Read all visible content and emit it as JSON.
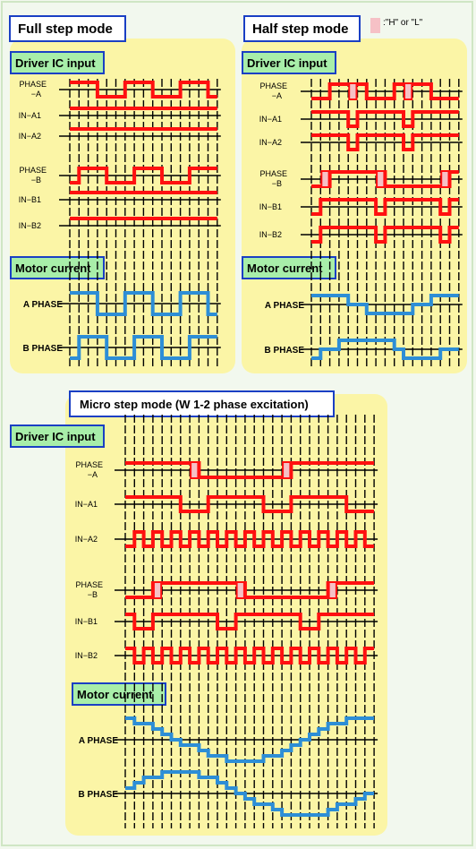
{
  "colors": {
    "panel": "#fbf5a6",
    "title_border": "#1a3fc4",
    "tag_fill": "#a8eea9",
    "signal": "#ff1010",
    "current": "#2d8ed6",
    "highlight": "#f6c1c6",
    "grid": "#000000"
  },
  "legend": {
    "text": ":\"H\" or \"L\""
  },
  "full": {
    "title": "Full step mode",
    "driver_tag": "Driver IC input",
    "current_tag": "Motor current",
    "labels": {
      "phase_a": [
        "PHASE",
        "−A"
      ],
      "in_a1": "IN−A1",
      "in_a2": "IN−A2",
      "phase_b": [
        "PHASE",
        "−B"
      ],
      "in_b1": "IN−B1",
      "in_b2": "IN−B2",
      "a_phase": "A PHASE",
      "b_phase": "B PHASE"
    }
  },
  "half": {
    "title": "Half step mode",
    "driver_tag": "Driver IC input",
    "current_tag": "Motor current",
    "labels": {
      "phase_a": [
        "PHASE",
        "−A"
      ],
      "in_a1": "IN−A1",
      "in_a2": "IN−A2",
      "phase_b": [
        "PHASE",
        "−B"
      ],
      "in_b1": "IN−B1",
      "in_b2": "IN−B2",
      "a_phase": "A PHASE",
      "b_phase": "B PHASE"
    }
  },
  "micro": {
    "title": "Micro step mode (W 1-2 phase excitation)",
    "driver_tag": "Driver IC input",
    "current_tag": "Motor current",
    "labels": {
      "phase_a": [
        "PHASE",
        "−A"
      ],
      "in_a1": "IN−A1",
      "in_a2": "IN−A2",
      "phase_b": [
        "PHASE",
        "−B"
      ],
      "in_b1": "IN−B1",
      "in_b2": "IN−B2",
      "a_phase": "A PHASE",
      "b_phase": "B PHASE"
    }
  }
}
